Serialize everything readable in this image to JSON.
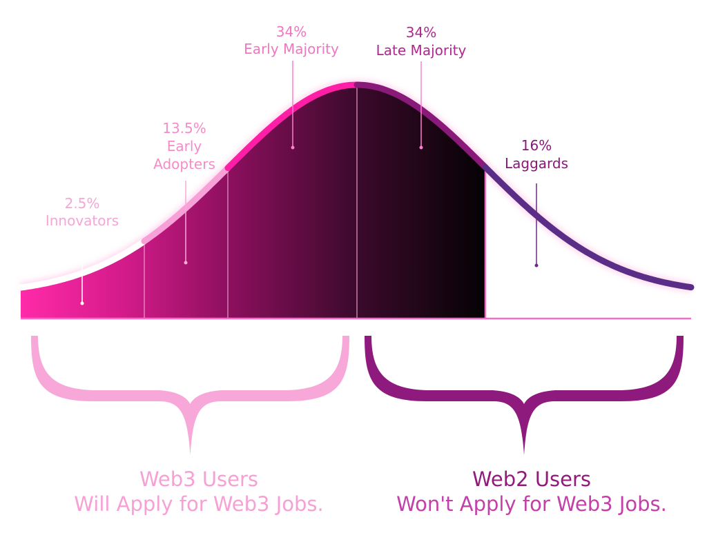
{
  "segments": [
    {
      "pct": "2.5%",
      "lines": [
        "Innovators"
      ],
      "color": "#f4a6d6"
    },
    {
      "pct": "13.5%",
      "lines": [
        "Early",
        "Adopters"
      ],
      "color": "#f48cc8"
    },
    {
      "pct": "34%",
      "lines": [
        "Early Majority"
      ],
      "color": "#ee77c0"
    },
    {
      "pct": "34%",
      "lines": [
        "Late Majority"
      ],
      "color": "#b2268f"
    },
    {
      "pct": "16%",
      "lines": [
        "Laggards"
      ],
      "color": "#8a1778"
    }
  ],
  "groups": {
    "web3": {
      "line1": "Web3 Users",
      "line2": "Will Apply for Web3 Jobs.",
      "color": "#f6a0d4"
    },
    "web2": {
      "line1": "Web2 Users",
      "line2": "Won't Apply for Web3 Jobs.",
      "color": "#931a7c",
      "line2_color": "#c440a8"
    }
  },
  "colors": {
    "magenta": "#ff1fa6",
    "pink_light": "#f8a8d8",
    "purple": "#5a2e86",
    "dark_fill": "#0b050a"
  }
}
